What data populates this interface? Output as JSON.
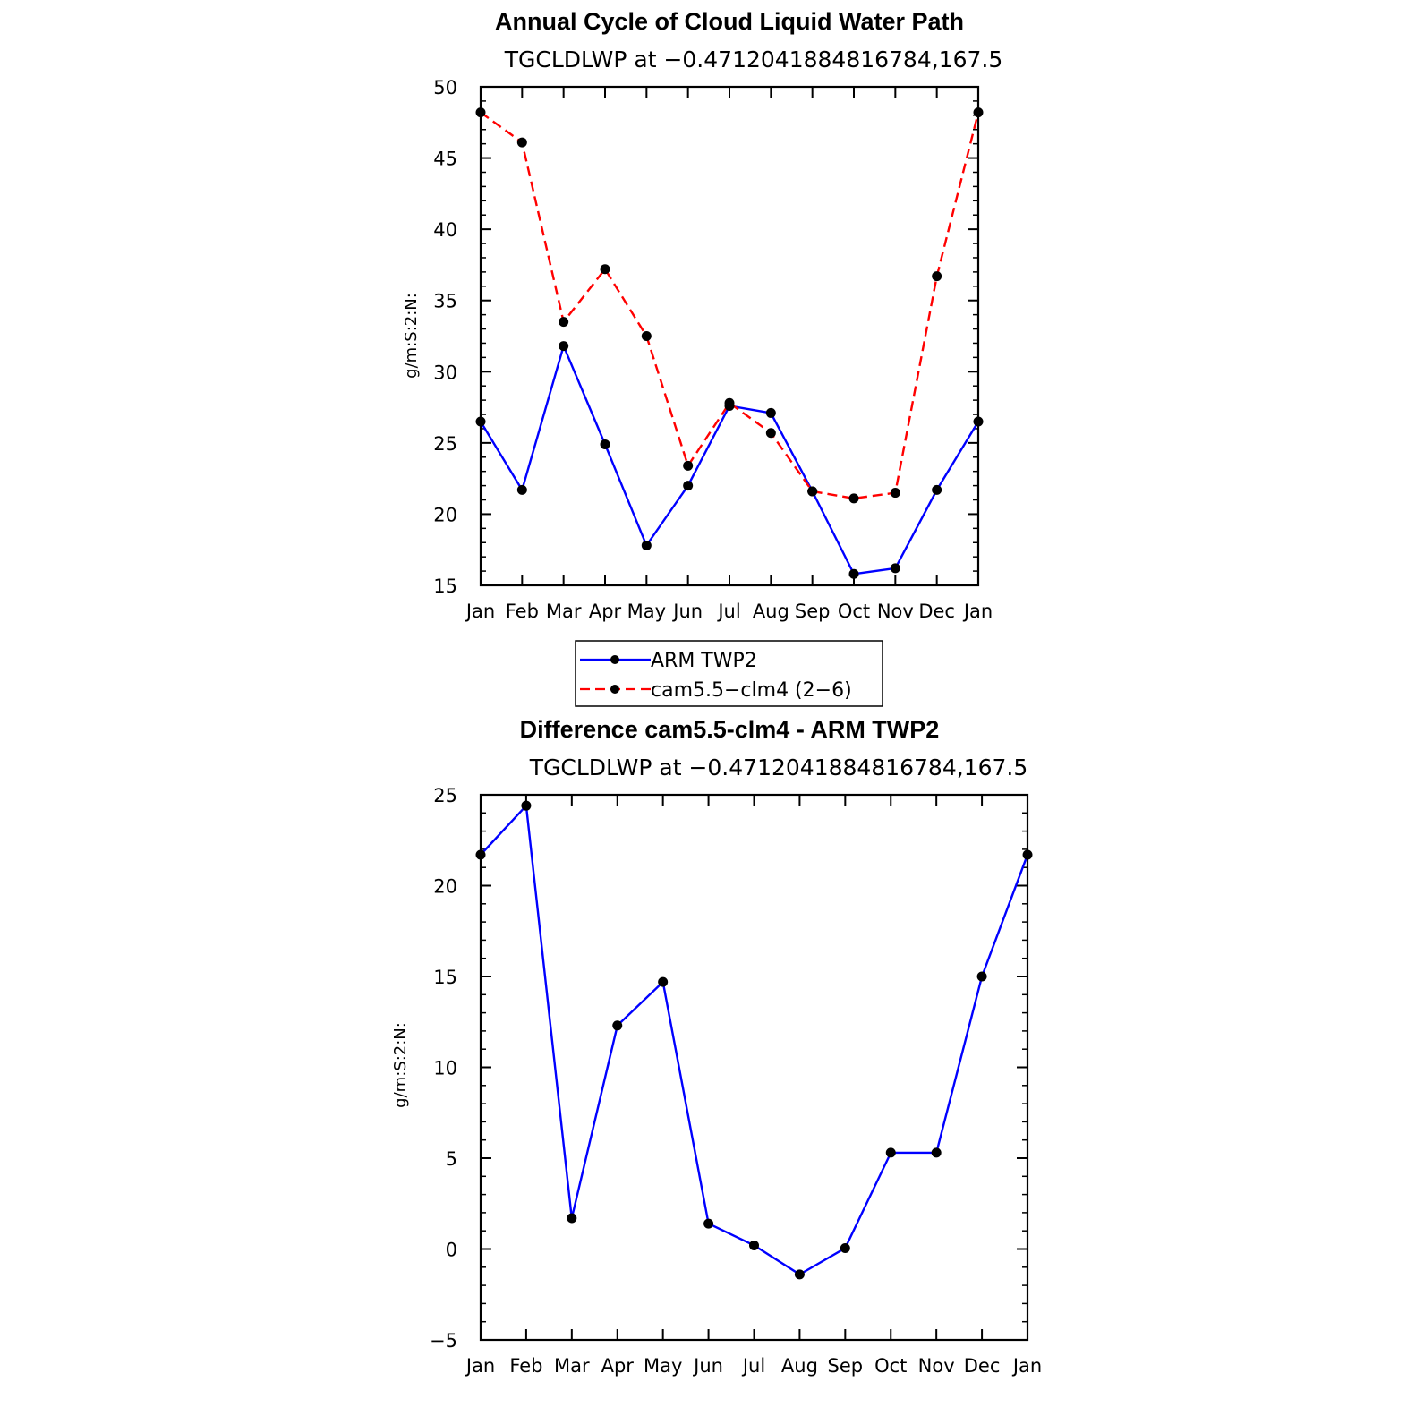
{
  "chart_data": [
    {
      "type": "line",
      "title": "Annual Cycle of Cloud Liquid Water Path",
      "subtitle": "TGCLDLWP at −0.4712041884816784,167.5",
      "ylabel": "g/m:S:2:N:",
      "xlabel": "",
      "ylim": [
        15,
        50
      ],
      "yticks": [
        "15",
        "20",
        "25",
        "30",
        "35",
        "40",
        "45",
        "50"
      ],
      "categories": [
        "Jan",
        "Feb",
        "Mar",
        "Apr",
        "May",
        "Jun",
        "Jul",
        "Aug",
        "Sep",
        "Oct",
        "Nov",
        "Dec",
        "Jan"
      ],
      "series": [
        {
          "name": "ARM TWP2",
          "color": "#0000ff",
          "dashed": false,
          "values": [
            26.5,
            21.7,
            31.8,
            24.9,
            17.8,
            22.0,
            27.6,
            27.1,
            21.6,
            15.8,
            16.2,
            21.7,
            26.5
          ]
        },
        {
          "name": "cam5.5−clm4 (2−6)",
          "color": "#ff0000",
          "dashed": true,
          "values": [
            48.2,
            46.1,
            33.5,
            37.2,
            32.5,
            23.4,
            27.8,
            25.7,
            21.6,
            21.1,
            21.5,
            36.7,
            48.2
          ]
        }
      ],
      "legend": "below"
    },
    {
      "type": "line",
      "title": "Difference cam5.5-clm4 - ARM TWP2",
      "subtitle": "TGCLDLWP at −0.4712041884816784,167.5",
      "ylabel": "g/m:S:2:N:",
      "xlabel": "",
      "ylim": [
        -5,
        25
      ],
      "yticks": [
        "−5",
        "0",
        "5",
        "10",
        "15",
        "20",
        "25"
      ],
      "categories": [
        "Jan",
        "Feb",
        "Mar",
        "Apr",
        "May",
        "Jun",
        "Jul",
        "Aug",
        "Sep",
        "Oct",
        "Nov",
        "Dec",
        "Jan"
      ],
      "series": [
        {
          "color": "#0000ff",
          "dashed": false,
          "values": [
            21.7,
            24.4,
            1.7,
            12.3,
            14.7,
            1.4,
            0.2,
            -1.4,
            0.05,
            5.3,
            5.3,
            15.0,
            21.7
          ]
        }
      ]
    }
  ]
}
